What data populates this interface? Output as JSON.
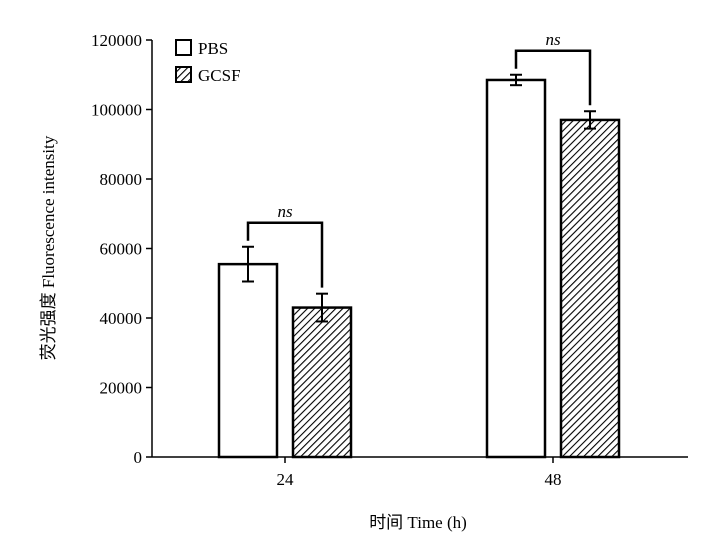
{
  "chart_data": {
    "type": "bar",
    "categories": [
      "24",
      "48"
    ],
    "series": [
      {
        "name": "PBS",
        "values": [
          55500,
          108500
        ],
        "errors": [
          5000,
          1500
        ],
        "pattern": "none",
        "color": "#ffffff"
      },
      {
        "name": "GCSF",
        "values": [
          43000,
          97000
        ],
        "errors": [
          4000,
          2500
        ],
        "pattern": "diagonal-hatch",
        "color": "#000000"
      }
    ],
    "xlabel": "时间 Time (h)",
    "ylabel": "荧光强度 Fluorescence intensity",
    "ylim": [
      0,
      120000
    ],
    "yticks": [
      0,
      20000,
      40000,
      60000,
      80000,
      100000,
      120000
    ],
    "legend": {
      "position": "top-left"
    },
    "annotations": [
      {
        "category": "24",
        "text": "ns"
      },
      {
        "category": "48",
        "text": "ns"
      }
    ],
    "grid": false
  }
}
